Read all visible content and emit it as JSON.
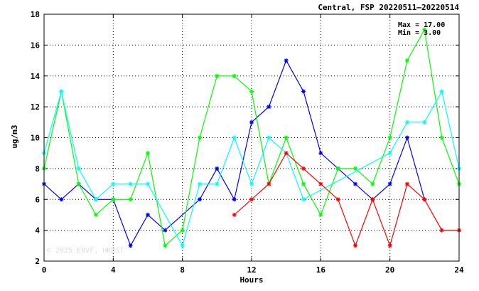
{
  "chart_data": {
    "type": "line",
    "title": "Central, FSP 20220511–20220514",
    "xlabel": "Hours",
    "ylabel": "ug/m3",
    "xlim": [
      0,
      24
    ],
    "ylim": [
      2,
      18
    ],
    "xticks": [
      0,
      4,
      8,
      12,
      16,
      20,
      24
    ],
    "yticks": [
      2,
      4,
      6,
      8,
      10,
      12,
      14,
      16,
      18
    ],
    "xtick_labels": [
      "0",
      "4",
      "8",
      "12",
      "16",
      "20",
      "24"
    ],
    "ytick_labels": [
      "2",
      "4",
      "6",
      "8",
      "10",
      "12",
      "14",
      "16",
      "18"
    ],
    "grid": true,
    "max_label": "Max = 17.00",
    "min_label": "Min = 3.00",
    "watermark": "© 2025  ENVF, HKUST",
    "series": [
      {
        "color": "#0000ff",
        "x": [
          0,
          1,
          2,
          3,
          4,
          5,
          6,
          7,
          9,
          10,
          11,
          12,
          13,
          14,
          15,
          16,
          17,
          18,
          19,
          20,
          21,
          22
        ],
        "y": [
          7,
          6,
          7,
          6,
          6,
          3,
          5,
          4,
          6,
          8,
          6,
          11,
          12,
          15,
          13,
          9,
          8,
          7,
          6,
          7,
          10,
          6
        ]
      },
      {
        "color": "#00ff00",
        "x": [
          0,
          1,
          2,
          3,
          4,
          5,
          6,
          7,
          8,
          9,
          10,
          11,
          12,
          13,
          14,
          15,
          16,
          17,
          18,
          19,
          20,
          21,
          22,
          23,
          24
        ],
        "y": [
          8,
          13,
          7,
          5,
          6,
          6,
          9,
          3,
          4,
          10,
          14,
          14,
          13,
          7,
          10,
          7,
          5,
          8,
          8,
          7,
          10,
          15,
          17,
          10,
          7
        ]
      },
      {
        "color": "#00ffff",
        "x": [
          0,
          1,
          2,
          3,
          4,
          5,
          6,
          8,
          9,
          10,
          11,
          12,
          13,
          14,
          15,
          20,
          21,
          22,
          23,
          24
        ],
        "y": [
          9,
          13,
          8,
          6,
          7,
          7,
          7,
          3,
          7,
          7,
          10,
          7,
          10,
          9,
          6,
          9,
          11,
          11,
          13,
          8
        ]
      },
      {
        "color": "#ff0000",
        "x": [
          11,
          12,
          13,
          14,
          15,
          16,
          17,
          18,
          19,
          20,
          21,
          22,
          23,
          24
        ],
        "y": [
          5,
          6,
          7,
          9,
          8,
          7,
          6,
          3,
          6,
          3,
          7,
          6,
          4,
          4
        ]
      }
    ]
  }
}
